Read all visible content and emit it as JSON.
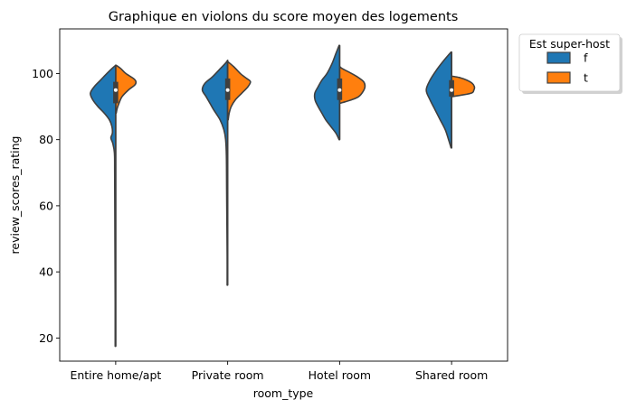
{
  "chart_data": {
    "type": "violin",
    "title": "Graphique en violons du score moyen des logements",
    "xlabel": "room_type",
    "ylabel": "review_scores_rating",
    "categories": [
      "Entire home/apt",
      "Private room",
      "Hotel room",
      "Shared room"
    ],
    "yticks": [
      20,
      40,
      60,
      80,
      100
    ],
    "ylim": [
      13,
      113.5
    ],
    "split": true,
    "grid": false,
    "legend": {
      "title": "Est super-host",
      "placement": "outside-top-right",
      "entries": [
        {
          "label": "f",
          "color": "#1f77b4"
        },
        {
          "label": "t",
          "color": "#ff7f0e"
        }
      ]
    },
    "series": [
      {
        "name": "f",
        "color": "#1f77b4",
        "side": "left",
        "violins": [
          {
            "profile": [
              [
                17.5,
                0.02
              ],
              [
                30,
                0.02
              ],
              [
                50,
                0.03
              ],
              [
                70,
                0.04
              ],
              [
                76,
                0.05
              ],
              [
                79,
                0.12
              ],
              [
                80.5,
                0.19
              ],
              [
                82,
                0.13
              ],
              [
                84,
                0.15
              ],
              [
                86,
                0.25
              ],
              [
                88,
                0.45
              ],
              [
                90,
                0.7
              ],
              [
                92,
                0.9
              ],
              [
                94,
                1.0
              ],
              [
                96,
                0.85
              ],
              [
                98,
                0.6
              ],
              [
                100,
                0.35
              ],
              [
                101.5,
                0.15
              ],
              [
                102.5,
                0.0
              ]
            ],
            "quartiles": [
              91,
              95,
              97.5
            ]
          },
          {
            "profile": [
              [
                36,
                0.02
              ],
              [
                45,
                0.02
              ],
              [
                55,
                0.03
              ],
              [
                65,
                0.04
              ],
              [
                75,
                0.05
              ],
              [
                80,
                0.08
              ],
              [
                83,
                0.15
              ],
              [
                86,
                0.3
              ],
              [
                89,
                0.55
              ],
              [
                91,
                0.7
              ],
              [
                93,
                0.85
              ],
              [
                95,
                1.0
              ],
              [
                97,
                0.9
              ],
              [
                99,
                0.6
              ],
              [
                101,
                0.35
              ],
              [
                103,
                0.1
              ],
              [
                104,
                0.0
              ]
            ],
            "quartiles": [
              92,
              95,
              98.5
            ]
          },
          {
            "profile": [
              [
                80,
                0.02
              ],
              [
                82,
                0.15
              ],
              [
                84,
                0.35
              ],
              [
                86,
                0.55
              ],
              [
                88,
                0.7
              ],
              [
                90,
                0.85
              ],
              [
                92,
                0.97
              ],
              [
                94,
                0.98
              ],
              [
                96,
                0.85
              ],
              [
                98,
                0.7
              ],
              [
                100,
                0.5
              ],
              [
                103,
                0.3
              ],
              [
                106,
                0.15
              ],
              [
                108.5,
                0.02
              ]
            ],
            "quartiles": [
              92,
              95,
              98.5
            ]
          },
          {
            "profile": [
              [
                77.5,
                0.02
              ],
              [
                80,
                0.12
              ],
              [
                83,
                0.25
              ],
              [
                86,
                0.45
              ],
              [
                89,
                0.65
              ],
              [
                92,
                0.85
              ],
              [
                95,
                1.0
              ],
              [
                98,
                0.85
              ],
              [
                101,
                0.6
              ],
              [
                104,
                0.3
              ],
              [
                106.5,
                0.02
              ]
            ],
            "quartiles": [
              93,
              95,
              98
            ]
          }
        ]
      },
      {
        "name": "t",
        "color": "#ff7f0e",
        "side": "right",
        "violins": [
          {
            "profile": [
              [
                88,
                0.02
              ],
              [
                89.5,
                0.06
              ],
              [
                91,
                0.13
              ],
              [
                93,
                0.25
              ],
              [
                95,
                0.5
              ],
              [
                96.5,
                0.75
              ],
              [
                97.5,
                0.8
              ],
              [
                98.5,
                0.7
              ],
              [
                100,
                0.4
              ],
              [
                101.5,
                0.2
              ],
              [
                102.5,
                0.02
              ]
            ],
            "quartiles": [
              93,
              96,
              98
            ]
          },
          {
            "profile": [
              [
                86,
                0.02
              ],
              [
                88,
                0.06
              ],
              [
                90,
                0.14
              ],
              [
                92,
                0.3
              ],
              [
                94,
                0.55
              ],
              [
                96,
                0.8
              ],
              [
                97.5,
                0.9
              ],
              [
                98.5,
                0.75
              ],
              [
                100,
                0.5
              ],
              [
                102,
                0.25
              ],
              [
                103.5,
                0.02
              ]
            ],
            "quartiles": [
              93,
              96,
              98
            ]
          },
          {
            "profile": [
              [
                91,
                0.02
              ],
              [
                92,
                0.45
              ],
              [
                93,
                0.75
              ],
              [
                94.5,
                0.92
              ],
              [
                96,
                1.0
              ],
              [
                97.5,
                0.95
              ],
              [
                99,
                0.7
              ],
              [
                100.5,
                0.35
              ],
              [
                101.5,
                0.1
              ],
              [
                102,
                0.02
              ]
            ],
            "quartiles": [
              94,
              96,
              98
            ]
          },
          {
            "profile": [
              [
                93,
                0.02
              ],
              [
                94,
                0.75
              ],
              [
                95,
                0.88
              ],
              [
                96,
                0.9
              ],
              [
                97,
                0.82
              ],
              [
                98,
                0.6
              ],
              [
                98.8,
                0.3
              ],
              [
                99.2,
                0.02
              ]
            ],
            "quartiles": [
              95,
              96,
              97.5
            ]
          }
        ]
      }
    ]
  }
}
